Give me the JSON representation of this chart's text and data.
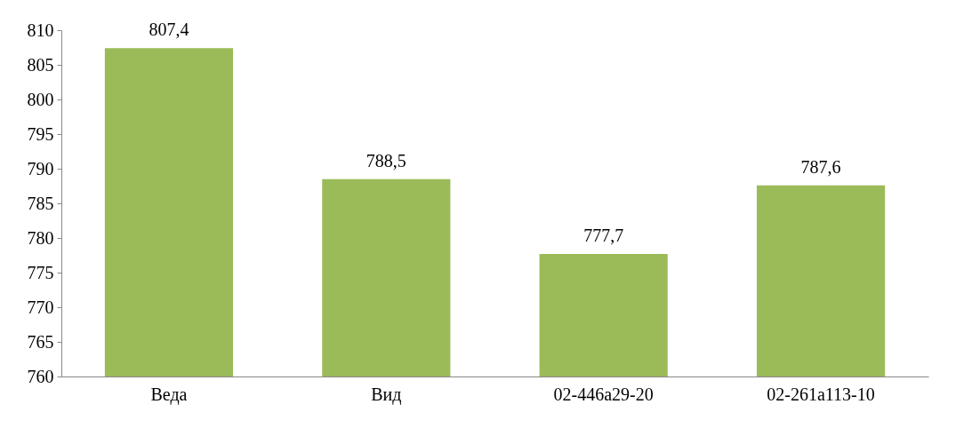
{
  "chart_data": {
    "type": "bar",
    "categories": [
      "Веда",
      "Вид",
      "02-446а29-20",
      "02-261а113-10"
    ],
    "values": [
      807.4,
      788.5,
      777.7,
      787.6
    ],
    "value_labels": [
      "807,4",
      "788,5",
      "777,7",
      "787,6"
    ],
    "color": "#9bbb59",
    "ylim": [
      760,
      810
    ],
    "yticks": [
      760,
      765,
      770,
      775,
      780,
      785,
      790,
      795,
      800,
      805,
      810
    ],
    "grid": false
  }
}
